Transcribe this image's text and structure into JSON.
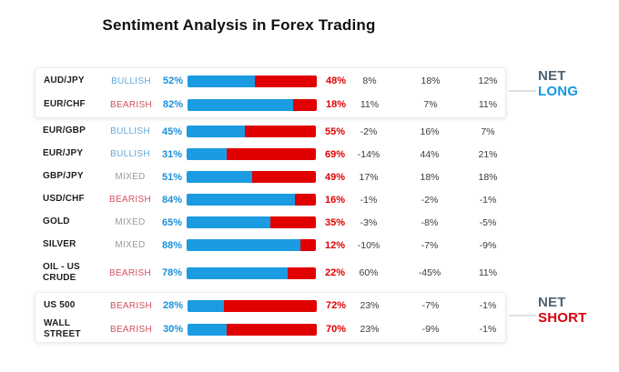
{
  "title": "Sentiment Analysis in Forex Trading",
  "annotations": {
    "net_long": {
      "top": "NET",
      "bottom": "LONG"
    },
    "net_short": {
      "top": "NET",
      "bottom": "SHORT"
    }
  },
  "colors": {
    "long_bar_blue": "#1B9BE1",
    "short_bar_red": "#E00000",
    "long_pct_text": "#1B8FD8",
    "short_pct_text": "#E00000",
    "bullish": "#64A9DB",
    "bearish": "#D4515F",
    "mixed": "#9C9C9C",
    "net_label": "#51616F",
    "net_long_accent": "#1497E3",
    "net_short_accent": "#D8000C"
  },
  "chart_data": {
    "type": "bar",
    "subtype": "horizontal-stacked-100pct",
    "title": "Sentiment Analysis in Forex Trading",
    "series": [
      "long_value",
      "short_value"
    ],
    "xlim": [
      0,
      100
    ],
    "grid": false,
    "legend_position": "none",
    "rows": [
      {
        "instrument": "AUD/JPY",
        "sentiment": "BULLISH",
        "long_value": 52,
        "short_value": 48,
        "long_label": "52%",
        "short_label": "48%",
        "changes": [
          "8%",
          "18%",
          "12%"
        ],
        "group": "net_long"
      },
      {
        "instrument": "EUR/CHF",
        "sentiment": "BEARISH",
        "long_value": 82,
        "short_value": 18,
        "long_label": "82%",
        "short_label": "18%",
        "changes": [
          "11%",
          "7%",
          "11%"
        ],
        "group": "net_long"
      },
      {
        "instrument": "EUR/GBP",
        "sentiment": "BULLISH",
        "long_value": 45,
        "short_value": 55,
        "long_label": "45%",
        "short_label": "55%",
        "changes": [
          "-2%",
          "16%",
          "7%"
        ],
        "group": null
      },
      {
        "instrument": "EUR/JPY",
        "sentiment": "BULLISH",
        "long_value": 31,
        "short_value": 69,
        "long_label": "31%",
        "short_label": "69%",
        "changes": [
          "-14%",
          "44%",
          "21%"
        ],
        "group": null
      },
      {
        "instrument": "GBP/JPY",
        "sentiment": "MIXED",
        "long_value": 51,
        "short_value": 49,
        "long_label": "51%",
        "short_label": "49%",
        "changes": [
          "17%",
          "18%",
          "18%"
        ],
        "group": null
      },
      {
        "instrument": "USD/CHF",
        "sentiment": "BEARISH",
        "long_value": 84,
        "short_value": 16,
        "long_label": "84%",
        "short_label": "16%",
        "changes": [
          "-1%",
          "-2%",
          "-1%"
        ],
        "group": null
      },
      {
        "instrument": "GOLD",
        "sentiment": "MIXED",
        "long_value": 65,
        "short_value": 35,
        "long_label": "65%",
        "short_label": "35%",
        "changes": [
          "-3%",
          "-8%",
          "-5%"
        ],
        "group": null
      },
      {
        "instrument": "SILVER",
        "sentiment": "MIXED",
        "long_value": 88,
        "short_value": 12,
        "long_label": "88%",
        "short_label": "12%",
        "changes": [
          "-10%",
          "-7%",
          "-9%"
        ],
        "group": null
      },
      {
        "instrument": "OIL - US CRUDE",
        "sentiment": "BEARISH",
        "long_value": 78,
        "short_value": 22,
        "long_label": "78%",
        "short_label": "22%",
        "changes": [
          "60%",
          "-45%",
          "11%"
        ],
        "group": null
      },
      {
        "instrument": "US 500",
        "sentiment": "BEARISH",
        "long_value": 28,
        "short_value": 72,
        "long_label": "28%",
        "short_label": "72%",
        "changes": [
          "23%",
          "-7%",
          "-1%"
        ],
        "group": "net_short"
      },
      {
        "instrument": "WALL STREET",
        "sentiment": "BEARISH",
        "long_value": 30,
        "short_value": 70,
        "long_label": "30%",
        "short_label": "70%",
        "changes": [
          "23%",
          "-9%",
          "-1%"
        ],
        "group": "net_short"
      }
    ]
  }
}
